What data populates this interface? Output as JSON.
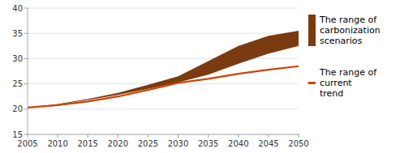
{
  "chart_data": {
    "type": "area",
    "x": [
      2005,
      2010,
      2015,
      2020,
      2025,
      2030,
      2035,
      2040,
      2045,
      2050
    ],
    "series": [
      {
        "name": "The range of\ncarbonization\nscenarios",
        "type": "band",
        "color": "#7B3B10",
        "lower": [
          20.3,
          20.9,
          21.8,
          22.8,
          24.0,
          25.3,
          26.8,
          29.0,
          31.0,
          32.5
        ],
        "upper": [
          20.3,
          21.0,
          22.0,
          23.2,
          24.8,
          26.5,
          29.5,
          32.5,
          34.5,
          35.5
        ]
      },
      {
        "name": "The range of\ncurrent\ntrend",
        "type": "line",
        "color": "#CC4400",
        "values": [
          20.3,
          20.8,
          21.5,
          22.5,
          23.8,
          25.2,
          26.0,
          27.0,
          27.8,
          28.5
        ]
      }
    ],
    "xlim": [
      2005,
      2050
    ],
    "xticks": [
      2005,
      2010,
      2015,
      2020,
      2025,
      2030,
      2035,
      2040,
      2045,
      2050
    ],
    "ylim": [
      15,
      40
    ],
    "yticks": [
      15,
      20,
      25,
      30,
      35,
      40
    ],
    "grid": "y",
    "legend": "right"
  }
}
